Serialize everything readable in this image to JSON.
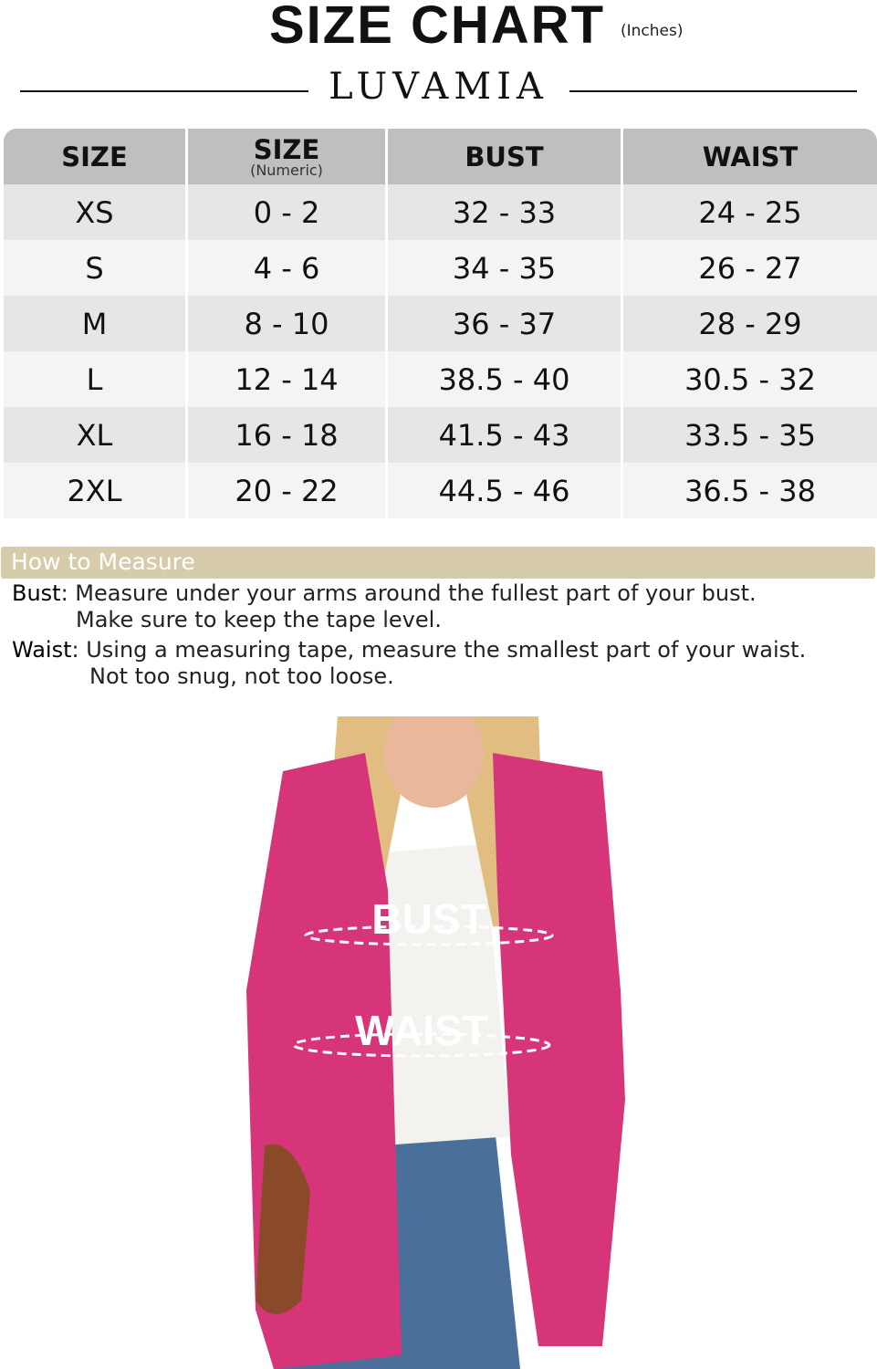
{
  "header": {
    "title": "SIZE CHART",
    "unit": "(Inches)",
    "brand": "LUVAMIA"
  },
  "table": {
    "columns": [
      {
        "label": "SIZE",
        "sub": ""
      },
      {
        "label": "SIZE",
        "sub": "(Numeric)"
      },
      {
        "label": "BUST",
        "sub": ""
      },
      {
        "label": "WAIST",
        "sub": ""
      }
    ],
    "rows": [
      [
        "XS",
        "0 - 2",
        "32 - 33",
        "24 - 25"
      ],
      [
        "S",
        "4 - 6",
        "34 - 35",
        "26 - 27"
      ],
      [
        "M",
        "8 - 10",
        "36 - 37",
        "28 - 29"
      ],
      [
        "L",
        "12 - 14",
        "38.5 - 40",
        "30.5 - 32"
      ],
      [
        "XL",
        "16 - 18",
        "41.5 - 43",
        "33.5 - 35"
      ],
      [
        "2XL",
        "20 - 22",
        "44.5 - 46",
        "36.5 - 38"
      ]
    ]
  },
  "how_to_measure": {
    "title": "How to Measure",
    "bust_label": "Bust",
    "bust_line1": ": Measure under your arms around the fullest part of your bust.",
    "bust_line2": "Make sure to keep the tape level.",
    "waist_label": "Waist",
    "waist_line1": ": Using a measuring tape, measure the smallest part of your waist.",
    "waist_line2": "Not too snug, not too loose."
  },
  "photo": {
    "bust_label": "BUST",
    "waist_label": "WAIST"
  },
  "colors": {
    "header_bg": "#bfbfbf",
    "row_odd": "#e6e6e6",
    "row_even": "#f4f4f4",
    "accent_bar": "#d6cbab",
    "blazer": "#d6357a"
  }
}
